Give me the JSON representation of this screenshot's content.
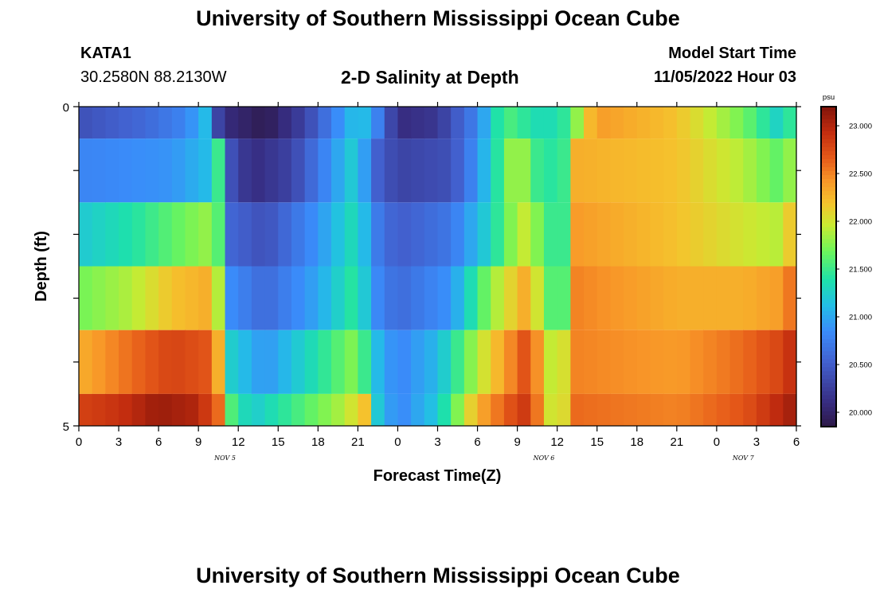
{
  "header": {
    "title": "University of Southern Mississippi Ocean Cube",
    "station": "KATA1",
    "coords": "30.2580N  88.2130W",
    "subtitle": "2-D Salinity at Depth",
    "model_start_label": "Model Start Time",
    "model_start_value": "11/05/2022 Hour 03"
  },
  "footer": {
    "title": "University of Southern Mississippi Ocean Cube"
  },
  "chart_data": {
    "type": "heatmap",
    "title": "2-D Salinity at Depth",
    "xlabel": "Forecast Time(Z)",
    "ylabel": "Depth (ft)",
    "x_tick_labels": [
      "0",
      "3",
      "6",
      "9",
      "12",
      "15",
      "18",
      "21",
      "0",
      "3",
      "6",
      "9",
      "12",
      "15",
      "18",
      "21",
      "0",
      "3",
      "6"
    ],
    "date_labels": [
      {
        "label": "NOV 5",
        "hour_index": 11
      },
      {
        "label": "NOV 6",
        "hour_index": 35
      },
      {
        "label": "NOV 7",
        "hour_index": 50
      }
    ],
    "x_range_hours": [
      0,
      54
    ],
    "y_tick_labels": [
      "0",
      "5"
    ],
    "y_range": [
      0,
      5
    ],
    "colorbar": {
      "unit": "psu",
      "min": 19.85,
      "max": 23.2,
      "labels": [
        "23.000",
        "22.500",
        "22.000",
        "21.500",
        "21.000",
        "20.500",
        "20.000"
      ]
    },
    "layers": [
      {
        "depth_range": [
          0,
          0.5
        ],
        "knots": [
          [
            0,
            20.4
          ],
          [
            5,
            20.6
          ],
          [
            8,
            20.8
          ],
          [
            9.5,
            21.1
          ],
          [
            10,
            20.5
          ],
          [
            11,
            20.1
          ],
          [
            14,
            19.9
          ],
          [
            17,
            20.3
          ],
          [
            21,
            21.2
          ],
          [
            22,
            21.0
          ],
          [
            24,
            20.1
          ],
          [
            27,
            20.2
          ],
          [
            30,
            20.8
          ],
          [
            32,
            21.6
          ],
          [
            35,
            21.3
          ],
          [
            37,
            21.5
          ],
          [
            38,
            22.1
          ],
          [
            39,
            22.4
          ],
          [
            45,
            22.2
          ],
          [
            50,
            21.7
          ],
          [
            53,
            21.2
          ],
          [
            54,
            21.7
          ]
        ]
      },
      {
        "depth_range": [
          0.5,
          1.5
        ],
        "knots": [
          [
            0,
            20.8
          ],
          [
            7,
            20.9
          ],
          [
            9.5,
            21.1
          ],
          [
            10.5,
            21.5
          ],
          [
            11,
            20.5
          ],
          [
            13,
            20.1
          ],
          [
            16,
            20.3
          ],
          [
            21,
            21.3
          ],
          [
            22,
            20.6
          ],
          [
            24,
            20.3
          ],
          [
            28,
            20.4
          ],
          [
            30,
            20.9
          ],
          [
            32,
            21.6
          ],
          [
            33,
            22.0
          ],
          [
            34,
            21.6
          ],
          [
            35,
            21.4
          ],
          [
            36.5,
            21.5
          ],
          [
            37.5,
            22.3
          ],
          [
            45,
            22.2
          ],
          [
            50,
            21.9
          ],
          [
            53,
            21.6
          ],
          [
            54,
            22.0
          ]
        ]
      },
      {
        "depth_range": [
          1.5,
          2.5
        ],
        "knots": [
          [
            0,
            21.2
          ],
          [
            4,
            21.4
          ],
          [
            8,
            21.7
          ],
          [
            9.5,
            21.8
          ],
          [
            10.5,
            21.6
          ],
          [
            11,
            20.6
          ],
          [
            14,
            20.4
          ],
          [
            18,
            20.9
          ],
          [
            21,
            21.4
          ],
          [
            22,
            20.8
          ],
          [
            24,
            20.5
          ],
          [
            28,
            20.7
          ],
          [
            31,
            21.3
          ],
          [
            33,
            21.9
          ],
          [
            34,
            22.0
          ],
          [
            35,
            21.5
          ],
          [
            36.5,
            21.5
          ],
          [
            37.5,
            22.4
          ],
          [
            45,
            22.2
          ],
          [
            50,
            22.0
          ],
          [
            53,
            21.9
          ],
          [
            54,
            22.4
          ]
        ]
      },
      {
        "depth_range": [
          2.5,
          3.5
        ],
        "knots": [
          [
            0,
            21.7
          ],
          [
            4,
            21.9
          ],
          [
            7,
            22.2
          ],
          [
            9.5,
            22.3
          ],
          [
            10.5,
            21.9
          ],
          [
            11,
            20.9
          ],
          [
            14,
            20.6
          ],
          [
            18,
            21.0
          ],
          [
            21,
            21.5
          ],
          [
            22,
            20.9
          ],
          [
            24,
            20.6
          ],
          [
            28,
            20.9
          ],
          [
            31,
            21.8
          ],
          [
            33,
            22.2
          ],
          [
            34,
            22.4
          ],
          [
            35,
            21.6
          ],
          [
            36.5,
            21.6
          ],
          [
            37.5,
            22.5
          ],
          [
            45,
            22.3
          ],
          [
            50,
            22.3
          ],
          [
            53,
            22.4
          ],
          [
            54,
            22.7
          ]
        ]
      },
      {
        "depth_range": [
          3.5,
          4.5
        ],
        "knots": [
          [
            0,
            22.3
          ],
          [
            4,
            22.6
          ],
          [
            7,
            22.8
          ],
          [
            9.5,
            22.7
          ],
          [
            10.5,
            22.3
          ],
          [
            11,
            21.3
          ],
          [
            14,
            20.9
          ],
          [
            18,
            21.4
          ],
          [
            21,
            21.8
          ],
          [
            22,
            21.2
          ],
          [
            24,
            20.8
          ],
          [
            27,
            21.1
          ],
          [
            30,
            21.9
          ],
          [
            33,
            22.6
          ],
          [
            34,
            22.8
          ],
          [
            35,
            22.1
          ],
          [
            36,
            21.8
          ],
          [
            37.5,
            22.5
          ],
          [
            45,
            22.4
          ],
          [
            50,
            22.6
          ],
          [
            53,
            22.8
          ],
          [
            54,
            23.0
          ]
        ]
      },
      {
        "depth_range": [
          4.5,
          5
        ],
        "knots": [
          [
            0,
            22.8
          ],
          [
            3,
            22.9
          ],
          [
            6,
            23.1
          ],
          [
            9,
            23.0
          ],
          [
            10.5,
            22.6
          ],
          [
            11,
            21.7
          ],
          [
            13,
            21.2
          ],
          [
            16,
            21.5
          ],
          [
            20,
            21.9
          ],
          [
            22,
            22.3
          ],
          [
            22.5,
            21.2
          ],
          [
            24,
            20.8
          ],
          [
            27,
            21.2
          ],
          [
            30,
            22.3
          ],
          [
            33,
            22.8
          ],
          [
            34,
            22.9
          ],
          [
            35,
            22.2
          ],
          [
            36,
            21.8
          ],
          [
            37.5,
            22.6
          ],
          [
            45,
            22.5
          ],
          [
            50,
            22.7
          ],
          [
            53,
            23.0
          ],
          [
            54,
            23.1
          ]
        ]
      }
    ]
  }
}
